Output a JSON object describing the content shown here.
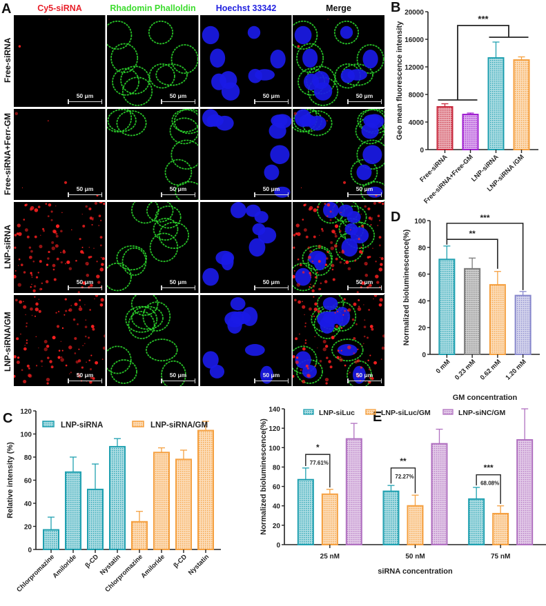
{
  "figure": {
    "panels": {
      "A": {
        "letter": "A",
        "columns": [
          {
            "label": "Cy5-siRNA",
            "color": "#e8212b"
          },
          {
            "label": "Rhadomin Phalloldin",
            "color": "#3ddc2e"
          },
          {
            "label": "Hoechst  33342",
            "color": "#1f1fe0"
          },
          {
            "label": "Merge",
            "color": "#111111"
          }
        ],
        "rows": [
          {
            "label": "Free-siRNA"
          },
          {
            "label": "Free-siRNA+Ferr-GM"
          },
          {
            "label": "LNP-siRNA"
          },
          {
            "label": "LNP-siRNA/GM"
          }
        ],
        "scale_bar": "50 μm"
      },
      "B": {
        "letter": "B"
      },
      "C": {
        "letter": "C"
      },
      "D": {
        "letter": "D"
      },
      "E": {
        "letter": "E"
      }
    }
  },
  "chart_data": [
    {
      "panel": "B",
      "type": "bar",
      "title": "",
      "xlabel": "",
      "ylabel": "Geo mean fluorescence intensity",
      "ylim": [
        0,
        20000
      ],
      "yticks": [
        0,
        4000,
        8000,
        12000,
        16000,
        20000
      ],
      "categories": [
        "Free-siRNA",
        "Free-siRNA+Free-GM",
        "LNP-siRNA",
        "LNP-siRNA /GM"
      ],
      "values": [
        6200,
        5100,
        13300,
        13000
      ],
      "errors": [
        450,
        200,
        2300,
        450
      ],
      "colors": [
        "#c8283c",
        "#a020d0",
        "#1fa0b0",
        "#f5a040"
      ],
      "annotations": [
        {
          "text": "***",
          "between": [
            "Free groups",
            "LNP groups"
          ]
        }
      ],
      "grid": false,
      "legend": null
    },
    {
      "panel": "C",
      "type": "bar",
      "title": "",
      "xlabel": "",
      "ylabel": "Relative intensity (%)",
      "ylim": [
        0,
        120
      ],
      "yticks": [
        0,
        20,
        40,
        60,
        80,
        100,
        120
      ],
      "categories": [
        "Chlorpromazine",
        "Amiloride",
        "β-CD",
        "Nystatin"
      ],
      "series": [
        {
          "name": "LNP-siRNA",
          "values": [
            17,
            67,
            52,
            89
          ],
          "errors": [
            11,
            13,
            22,
            7
          ],
          "color": "#1fa0b0"
        },
        {
          "name": "LNP-siRNA/GM",
          "values": [
            24,
            84,
            78,
            103
          ],
          "errors": [
            9,
            4,
            8,
            8
          ],
          "color": "#f5a040"
        }
      ],
      "legend_position": "top",
      "grid": false
    },
    {
      "panel": "D",
      "type": "bar",
      "title": "",
      "xlabel": "GM concentration",
      "ylabel": "Normalized bioluminescence(%)",
      "ylim": [
        0,
        100
      ],
      "yticks": [
        0,
        20,
        40,
        60,
        80,
        100
      ],
      "categories": [
        "0 mM",
        "0.23 mM",
        "0.62 mM",
        "1.20 mM"
      ],
      "values": [
        71,
        64,
        52,
        44
      ],
      "errors": [
        10,
        8,
        10,
        3
      ],
      "colors": [
        "#1fa0b0",
        "#7a7a7a",
        "#f5a040",
        "#8888cc"
      ],
      "annotations": [
        {
          "text": "**",
          "between": [
            "0 mM",
            "0.62 mM"
          ]
        },
        {
          "text": "***",
          "between": [
            "0 mM",
            "1.20 mM"
          ]
        }
      ],
      "grid": false
    },
    {
      "panel": "E",
      "type": "bar",
      "title": "",
      "xlabel": "siRNA concentration",
      "ylabel": "Normalized bioluminescence(%)",
      "ylim": [
        0,
        140
      ],
      "yticks": [
        0,
        20,
        40,
        60,
        80,
        100,
        120,
        140
      ],
      "categories": [
        "25 nM",
        "50 nM",
        "75 nM"
      ],
      "series": [
        {
          "name": "LNP-siLuc",
          "values": [
            67,
            55,
            47
          ],
          "errors": [
            12,
            6,
            12
          ],
          "color": "#1fa0b0"
        },
        {
          "name": "LNP-siLuc/GM",
          "values": [
            52,
            40,
            32
          ],
          "errors": [
            5,
            11,
            8
          ],
          "color": "#f5a040"
        },
        {
          "name": "LNP-siNC/GM",
          "values": [
            109,
            104,
            108
          ],
          "errors": [
            16,
            15,
            32
          ],
          "color": "#b070c0"
        }
      ],
      "annotations": [
        {
          "group": "25 nM",
          "stars": "*",
          "percent": "77.61%"
        },
        {
          "group": "50 nM",
          "stars": "**",
          "percent": "72.27%"
        },
        {
          "group": "75 nM",
          "stars": "***",
          "percent": "68.08%"
        }
      ],
      "legend_position": "top",
      "grid": false
    }
  ]
}
